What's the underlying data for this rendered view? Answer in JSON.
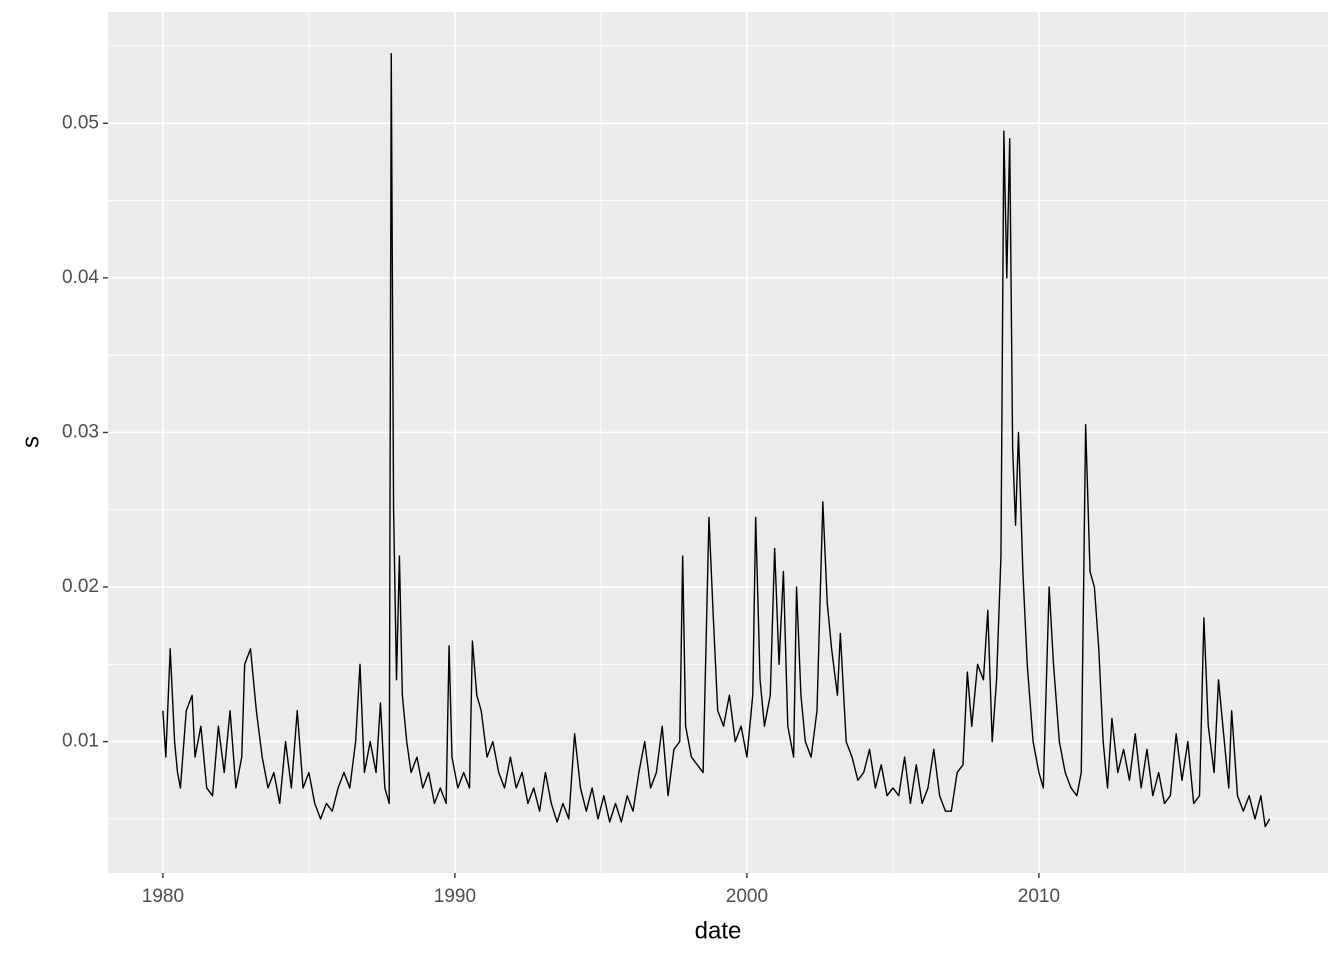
{
  "chart_data": {
    "type": "line",
    "x_label": "date",
    "y_label": "s",
    "x": [
      1980.0,
      1980.1,
      1980.25,
      1980.4,
      1980.5,
      1980.6,
      1980.8,
      1981.0,
      1981.1,
      1981.3,
      1981.5,
      1981.7,
      1981.9,
      1982.1,
      1982.3,
      1982.5,
      1982.7,
      1982.8,
      1983.0,
      1983.2,
      1983.4,
      1983.6,
      1983.8,
      1984.0,
      1984.2,
      1984.4,
      1984.6,
      1984.8,
      1985.0,
      1985.2,
      1985.4,
      1985.6,
      1985.8,
      1986.0,
      1986.2,
      1986.4,
      1986.6,
      1986.75,
      1986.9,
      1987.1,
      1987.3,
      1987.45,
      1987.6,
      1987.75,
      1987.82,
      1987.9,
      1988.0,
      1988.1,
      1988.2,
      1988.35,
      1988.5,
      1988.7,
      1988.9,
      1989.1,
      1989.3,
      1989.5,
      1989.7,
      1989.8,
      1989.9,
      1990.1,
      1990.3,
      1990.5,
      1990.6,
      1990.75,
      1990.9,
      1991.1,
      1991.3,
      1991.5,
      1991.7,
      1991.9,
      1992.1,
      1992.3,
      1992.5,
      1992.7,
      1992.9,
      1993.1,
      1993.3,
      1993.5,
      1993.7,
      1993.9,
      1994.1,
      1994.3,
      1994.5,
      1994.7,
      1994.9,
      1995.1,
      1995.3,
      1995.5,
      1995.7,
      1995.9,
      1996.1,
      1996.3,
      1996.5,
      1996.7,
      1996.9,
      1997.1,
      1997.3,
      1997.5,
      1997.7,
      1997.8,
      1997.9,
      1998.1,
      1998.3,
      1998.5,
      1998.7,
      1998.85,
      1999.0,
      1999.2,
      1999.4,
      1999.6,
      1999.8,
      2000.0,
      2000.2,
      2000.3,
      2000.45,
      2000.6,
      2000.8,
      2000.95,
      2001.1,
      2001.25,
      2001.4,
      2001.6,
      2001.7,
      2001.85,
      2002.0,
      2002.2,
      2002.4,
      2002.6,
      2002.75,
      2002.9,
      2003.1,
      2003.2,
      2003.4,
      2003.6,
      2003.8,
      2004.0,
      2004.2,
      2004.4,
      2004.6,
      2004.8,
      2005.0,
      2005.2,
      2005.4,
      2005.6,
      2005.8,
      2006.0,
      2006.2,
      2006.4,
      2006.6,
      2006.8,
      2007.0,
      2007.2,
      2007.4,
      2007.55,
      2007.7,
      2007.9,
      2008.1,
      2008.25,
      2008.4,
      2008.55,
      2008.7,
      2008.8,
      2008.9,
      2009.0,
      2009.1,
      2009.2,
      2009.3,
      2009.45,
      2009.6,
      2009.8,
      2010.0,
      2010.15,
      2010.35,
      2010.5,
      2010.7,
      2010.9,
      2011.1,
      2011.3,
      2011.45,
      2011.6,
      2011.75,
      2011.9,
      2012.05,
      2012.2,
      2012.35,
      2012.5,
      2012.7,
      2012.9,
      2013.1,
      2013.3,
      2013.5,
      2013.7,
      2013.9,
      2014.1,
      2014.3,
      2014.5,
      2014.7,
      2014.9,
      2015.1,
      2015.3,
      2015.5,
      2015.65,
      2015.8,
      2016.0,
      2016.15,
      2016.3,
      2016.5,
      2016.6,
      2016.8,
      2017.0,
      2017.2,
      2017.4,
      2017.6,
      2017.75,
      2017.9
    ],
    "series": [
      {
        "color": "#000000",
        "values": [
          0.012,
          0.009,
          0.016,
          0.01,
          0.008,
          0.007,
          0.012,
          0.013,
          0.009,
          0.011,
          0.007,
          0.0065,
          0.011,
          0.008,
          0.012,
          0.007,
          0.009,
          0.015,
          0.016,
          0.012,
          0.009,
          0.007,
          0.008,
          0.006,
          0.01,
          0.007,
          0.012,
          0.007,
          0.008,
          0.006,
          0.005,
          0.006,
          0.0055,
          0.007,
          0.008,
          0.007,
          0.01,
          0.015,
          0.008,
          0.01,
          0.008,
          0.0125,
          0.007,
          0.006,
          0.0545,
          0.025,
          0.014,
          0.022,
          0.013,
          0.01,
          0.008,
          0.009,
          0.007,
          0.008,
          0.006,
          0.007,
          0.006,
          0.0162,
          0.009,
          0.007,
          0.008,
          0.007,
          0.0165,
          0.013,
          0.012,
          0.009,
          0.01,
          0.008,
          0.007,
          0.009,
          0.007,
          0.008,
          0.006,
          0.007,
          0.0055,
          0.008,
          0.006,
          0.0048,
          0.006,
          0.005,
          0.0105,
          0.007,
          0.0055,
          0.007,
          0.005,
          0.0065,
          0.0048,
          0.006,
          0.0048,
          0.0065,
          0.0055,
          0.008,
          0.01,
          0.007,
          0.008,
          0.011,
          0.0065,
          0.0095,
          0.01,
          0.022,
          0.011,
          0.009,
          0.0085,
          0.008,
          0.0245,
          0.018,
          0.012,
          0.011,
          0.013,
          0.01,
          0.011,
          0.009,
          0.013,
          0.0245,
          0.014,
          0.011,
          0.013,
          0.0225,
          0.015,
          0.021,
          0.011,
          0.009,
          0.02,
          0.013,
          0.01,
          0.009,
          0.012,
          0.0255,
          0.019,
          0.016,
          0.013,
          0.017,
          0.01,
          0.009,
          0.0075,
          0.008,
          0.0095,
          0.007,
          0.0085,
          0.0065,
          0.007,
          0.0065,
          0.009,
          0.006,
          0.0085,
          0.006,
          0.007,
          0.0095,
          0.0065,
          0.0055,
          0.0055,
          0.008,
          0.0085,
          0.0145,
          0.011,
          0.015,
          0.014,
          0.0185,
          0.01,
          0.014,
          0.022,
          0.0495,
          0.04,
          0.049,
          0.029,
          0.024,
          0.03,
          0.021,
          0.015,
          0.01,
          0.008,
          0.007,
          0.02,
          0.015,
          0.01,
          0.008,
          0.007,
          0.0065,
          0.008,
          0.0305,
          0.021,
          0.02,
          0.016,
          0.01,
          0.007,
          0.0115,
          0.008,
          0.0095,
          0.0075,
          0.0105,
          0.007,
          0.0095,
          0.0065,
          0.008,
          0.006,
          0.0065,
          0.0105,
          0.0075,
          0.01,
          0.006,
          0.0065,
          0.018,
          0.011,
          0.008,
          0.014,
          0.011,
          0.007,
          0.012,
          0.0065,
          0.0055,
          0.0065,
          0.005,
          0.0065,
          0.0045,
          0.005
        ]
      }
    ],
    "xlim": [
      1978.12,
      2019.9
    ],
    "xticks": [
      1980,
      1990,
      2000,
      2010
    ],
    "ylim": [
      0.0015,
      0.0572
    ],
    "yticks": [
      0.01,
      0.02,
      0.03,
      0.04,
      0.05
    ],
    "grid": true
  }
}
